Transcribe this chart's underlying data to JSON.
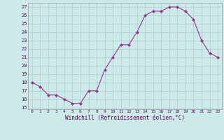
{
  "x": [
    0,
    1,
    2,
    3,
    4,
    5,
    6,
    7,
    8,
    9,
    10,
    11,
    12,
    13,
    14,
    15,
    16,
    17,
    18,
    19,
    20,
    21,
    22,
    23
  ],
  "y": [
    18,
    17.5,
    16.5,
    16.5,
    16,
    15.5,
    15.5,
    17,
    17,
    19.5,
    21,
    22.5,
    22.5,
    24,
    26,
    26.5,
    26.5,
    27,
    27,
    26.5,
    25.5,
    23,
    21.5,
    21
  ],
  "ylim": [
    14.8,
    27.5
  ],
  "yticks": [
    15,
    16,
    17,
    18,
    19,
    20,
    21,
    22,
    23,
    24,
    25,
    26,
    27
  ],
  "xtick_labels": [
    "0",
    "1",
    "2",
    "3",
    "4",
    "5",
    "6",
    "7",
    "8",
    "9",
    "10",
    "11",
    "12",
    "13",
    "14",
    "15",
    "16",
    "17",
    "18",
    "19",
    "20",
    "21",
    "22",
    "23"
  ],
  "xlabel": "Windchill (Refroidissement éolien,°C)",
  "line_color": "#993399",
  "marker": "D",
  "bg_color": "#cceae8",
  "grid_color": "#aacccc",
  "label_color": "#660066"
}
